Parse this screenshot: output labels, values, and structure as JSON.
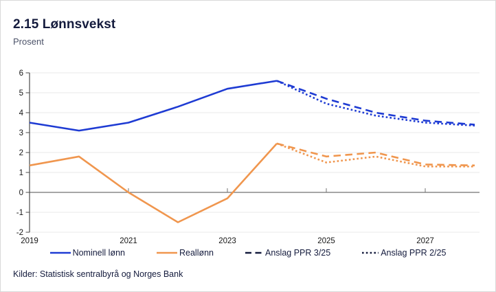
{
  "header": {
    "title": "2.15 Lønnsvekst",
    "subtitle": "Prosent"
  },
  "footer": {
    "sources": "Kilder: Statistisk sentralbyrå og Norges Bank"
  },
  "colors": {
    "blue": "#1e3bd3",
    "orange": "#f0964e",
    "navy": "#141b3d",
    "grid": "#e8e8e8",
    "zero_line": "#707070",
    "axis": "#4a4a4a",
    "tick_label": "#151515",
    "border": "#d8d8d8",
    "subtitle_text": "#4b5268",
    "background": "#ffffff"
  },
  "chart_data": {
    "type": "line",
    "title": "2.15 Lønnsvekst",
    "subtitle": "Prosent",
    "ylabel": "Prosent",
    "ylim": [
      -2,
      6
    ],
    "yticks": [
      6,
      5,
      4,
      3,
      2,
      1,
      0,
      -1,
      -2
    ],
    "xticks": [
      2019,
      2021,
      2023,
      2025,
      2027
    ],
    "xlim": [
      2019,
      2028.15
    ],
    "grid": true,
    "legend_position": "bottom",
    "series": [
      {
        "name": "Nominell lønn",
        "color": "blue",
        "style": "solid",
        "x": [
          2019,
          2020,
          2021,
          2022,
          2023,
          2024
        ],
        "y": [
          3.5,
          3.1,
          3.5,
          4.3,
          5.2,
          5.6
        ]
      },
      {
        "name": "Reallønn",
        "color": "orange",
        "style": "solid",
        "x": [
          2019,
          2020,
          2021,
          2022,
          2023,
          2024
        ],
        "y": [
          1.35,
          1.8,
          0.0,
          -1.5,
          -0.3,
          2.45
        ]
      },
      {
        "name": "Anslag PPR 3/25 (nominell lønn)",
        "color": "blue",
        "style": "dashed",
        "x": [
          2024,
          2025,
          2026,
          2027,
          2028
        ],
        "y": [
          5.6,
          4.7,
          4.0,
          3.6,
          3.4
        ]
      },
      {
        "name": "Anslag PPR 3/25 (reallønn)",
        "color": "orange",
        "style": "dashed",
        "x": [
          2024,
          2025,
          2026,
          2027,
          2028
        ],
        "y": [
          2.45,
          1.8,
          2.0,
          1.4,
          1.35
        ]
      },
      {
        "name": "Anslag PPR 2/25 (nominell lønn)",
        "color": "blue",
        "style": "dotted",
        "x": [
          2024,
          2025,
          2026,
          2027,
          2028
        ],
        "y": [
          5.6,
          4.45,
          3.85,
          3.5,
          3.35
        ]
      },
      {
        "name": "Anslag PPR 2/25 (reallønn)",
        "color": "orange",
        "style": "dotted",
        "x": [
          2024,
          2025,
          2026,
          2027,
          2028
        ],
        "y": [
          2.45,
          1.5,
          1.8,
          1.3,
          1.3
        ]
      }
    ],
    "legend": [
      {
        "label": "Nominell lønn",
        "color": "blue",
        "style": "solid"
      },
      {
        "label": "Reallønn",
        "color": "orange",
        "style": "solid"
      },
      {
        "label": "Anslag PPR 3/25",
        "color": "navy",
        "style": "dashed"
      },
      {
        "label": "Anslag PPR 2/25",
        "color": "navy",
        "style": "dotted"
      }
    ]
  }
}
